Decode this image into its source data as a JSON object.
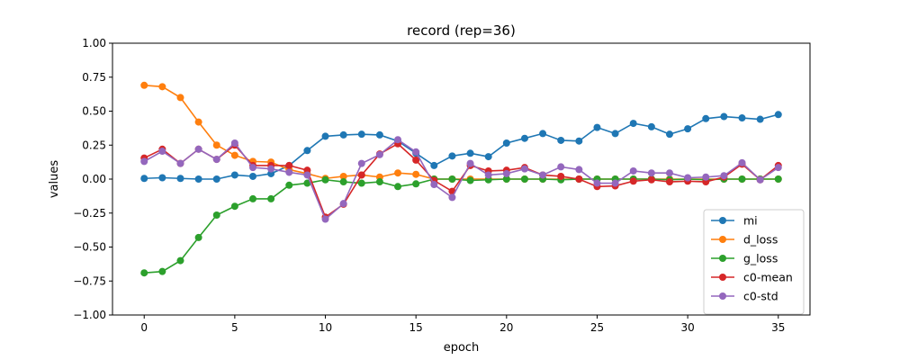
{
  "chart_data": {
    "type": "line",
    "title": "record (rep=36)",
    "xlabel": "epoch",
    "ylabel": "values",
    "xlim": [
      -1.75,
      36.75
    ],
    "ylim": [
      -1.0,
      1.0
    ],
    "xticks": [
      0,
      5,
      10,
      15,
      20,
      25,
      30,
      35
    ],
    "yticks": [
      -1.0,
      -0.75,
      -0.5,
      -0.25,
      0.0,
      0.25,
      0.5,
      0.75,
      1.0
    ],
    "ytick_labels": [
      "−1.00",
      "−0.75",
      "−0.50",
      "−0.25",
      "0.00",
      "0.25",
      "0.50",
      "0.75",
      "1.00"
    ],
    "legend_position": "lower-right",
    "grid": false,
    "x": [
      0,
      1,
      2,
      3,
      4,
      5,
      6,
      7,
      8,
      9,
      10,
      11,
      12,
      13,
      14,
      15,
      16,
      17,
      18,
      19,
      20,
      21,
      22,
      23,
      24,
      25,
      26,
      27,
      28,
      29,
      30,
      31,
      32,
      33,
      34,
      35
    ],
    "series": [
      {
        "name": "mi",
        "color": "#1f77b4",
        "values": [
          0.005,
          0.01,
          0.005,
          0.0,
          0.0,
          0.03,
          0.02,
          0.04,
          0.1,
          0.21,
          0.315,
          0.325,
          0.33,
          0.325,
          0.28,
          0.19,
          0.1,
          0.17,
          0.19,
          0.165,
          0.265,
          0.3,
          0.335,
          0.285,
          0.28,
          0.38,
          0.335,
          0.41,
          0.385,
          0.33,
          0.37,
          0.445,
          0.46,
          0.45,
          0.44,
          0.475
        ]
      },
      {
        "name": "d_loss",
        "color": "#ff7f0e",
        "values": [
          0.69,
          0.68,
          0.6,
          0.42,
          0.25,
          0.175,
          0.13,
          0.125,
          0.07,
          0.04,
          0.005,
          0.02,
          0.03,
          0.015,
          0.045,
          0.035,
          0.0,
          0.0,
          0.0,
          0.0,
          0.0,
          0.0,
          0.0,
          0.0,
          0.0,
          0.0,
          0.0,
          0.0,
          0.0,
          0.0,
          0.0,
          0.0,
          0.0,
          0.0,
          0.0,
          0.0
        ]
      },
      {
        "name": "g_loss",
        "color": "#2ca02c",
        "values": [
          -0.69,
          -0.68,
          -0.6,
          -0.43,
          -0.265,
          -0.2,
          -0.145,
          -0.145,
          -0.045,
          -0.03,
          -0.005,
          -0.02,
          -0.03,
          -0.02,
          -0.055,
          -0.035,
          -0.0,
          0.0,
          -0.01,
          -0.005,
          0.0,
          0.0,
          0.0,
          -0.005,
          0.0,
          0.0,
          0.0,
          0.0,
          0.0,
          -0.005,
          0.0,
          -0.005,
          0.0,
          0.0,
          0.0,
          0.0
        ]
      },
      {
        "name": "c0-mean",
        "color": "#d62728",
        "values": [
          0.155,
          0.22,
          0.115,
          0.22,
          0.145,
          0.25,
          0.1,
          0.1,
          0.1,
          0.065,
          -0.28,
          -0.185,
          0.03,
          0.185,
          0.26,
          0.14,
          -0.01,
          -0.09,
          0.1,
          0.06,
          0.065,
          0.085,
          0.03,
          0.02,
          0.0,
          -0.055,
          -0.05,
          -0.015,
          -0.005,
          -0.02,
          -0.015,
          -0.02,
          0.015,
          0.11,
          -0.005,
          0.1
        ]
      },
      {
        "name": "c0-std",
        "color": "#9467bd",
        "values": [
          0.13,
          0.205,
          0.115,
          0.22,
          0.145,
          0.265,
          0.085,
          0.075,
          0.05,
          0.03,
          -0.295,
          -0.18,
          0.115,
          0.18,
          0.29,
          0.2,
          -0.04,
          -0.135,
          0.115,
          0.03,
          0.04,
          0.075,
          0.03,
          0.09,
          0.07,
          -0.03,
          -0.03,
          0.06,
          0.045,
          0.045,
          0.01,
          0.015,
          0.025,
          0.12,
          -0.005,
          0.085
        ]
      }
    ]
  }
}
